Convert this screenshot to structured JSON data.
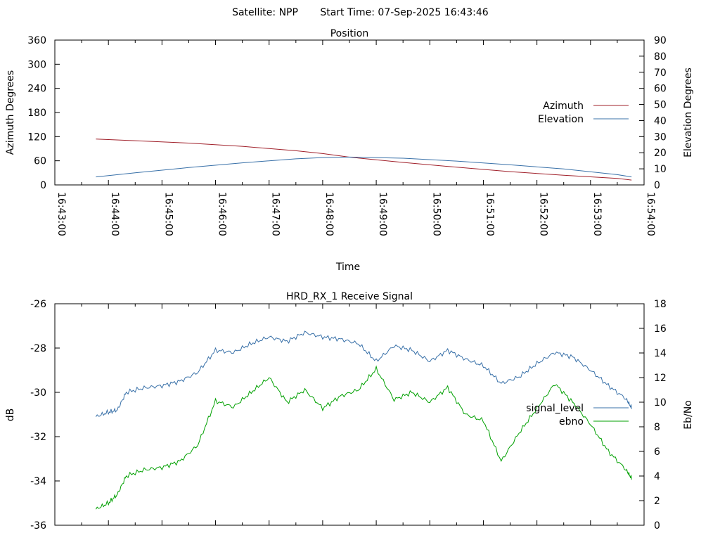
{
  "header": {
    "satellite": "Satellite: NPP",
    "start_time": "Start Time: 07-Sep-2025 16:43:46"
  },
  "chart_data": [
    {
      "type": "line",
      "title": "Position",
      "xlabel": "Time",
      "ylabel": "Azimuth Degrees",
      "y2label": "Elevation Degrees",
      "x_ticks": [
        "16:43:00",
        "16:44:00",
        "16:45:00",
        "16:46:00",
        "16:47:00",
        "16:48:00",
        "16:49:00",
        "16:50:00",
        "16:51:00",
        "16:52:00",
        "16:53:00",
        "16:54:00"
      ],
      "xlim": [
        "16:43:00",
        "16:54:00"
      ],
      "ylim": [
        0,
        360
      ],
      "y2lim": [
        0,
        90
      ],
      "y_ticks": [
        "0",
        "60",
        "120",
        "180",
        "240",
        "300",
        "360"
      ],
      "y2_ticks": [
        "0",
        "10",
        "20",
        "30",
        "40",
        "50",
        "60",
        "70",
        "80",
        "90"
      ],
      "legend_position": "right",
      "series": [
        {
          "name": "Azimuth",
          "axis": "y",
          "color": "#a0202a",
          "x": [
            "16:43:46",
            "16:44:30",
            "16:45:30",
            "16:46:30",
            "16:47:30",
            "16:48:00",
            "16:48:30",
            "16:49:30",
            "16:50:30",
            "16:51:30",
            "16:52:30",
            "16:53:30",
            "16:53:46"
          ],
          "values": [
            114,
            110,
            104,
            96,
            85,
            78,
            69,
            56,
            44,
            33,
            24,
            16,
            12
          ]
        },
        {
          "name": "Elevation",
          "axis": "y2",
          "color": "#3870a8",
          "x": [
            "16:43:46",
            "16:44:30",
            "16:45:30",
            "16:46:30",
            "16:47:30",
            "16:48:00",
            "16:48:30",
            "16:49:30",
            "16:50:30",
            "16:51:30",
            "16:52:30",
            "16:53:30",
            "16:53:46"
          ],
          "values": [
            5,
            7.5,
            10.8,
            13.7,
            16.2,
            17.0,
            17.3,
            16.6,
            14.8,
            12.5,
            9.9,
            6.4,
            5
          ]
        }
      ]
    },
    {
      "type": "line",
      "title": "HRD_RX_1 Receive Signal",
      "xlabel": "",
      "ylabel": "dB",
      "y2label": "Eb/No",
      "xlim": [
        "16:43:00",
        "16:54:00"
      ],
      "ylim": [
        -36,
        -26
      ],
      "y2lim": [
        0,
        18
      ],
      "y_ticks": [
        "-36",
        "-34",
        "-32",
        "-30",
        "-28",
        "-26"
      ],
      "y2_ticks": [
        "0",
        "2",
        "4",
        "6",
        "8",
        "10",
        "12",
        "14",
        "16",
        "18"
      ],
      "legend_position": "right",
      "series": [
        {
          "name": "signal_level",
          "axis": "y",
          "color": "#3870a8",
          "x": [
            "16:43:46",
            "16:44:00",
            "16:44:10",
            "16:44:20",
            "16:44:40",
            "16:45:00",
            "16:45:20",
            "16:45:40",
            "16:46:00",
            "16:46:20",
            "16:46:40",
            "16:47:00",
            "16:47:20",
            "16:47:40",
            "16:48:00",
            "16:48:20",
            "16:48:40",
            "16:49:00",
            "16:49:20",
            "16:49:40",
            "16:50:00",
            "16:50:20",
            "16:50:40",
            "16:51:00",
            "16:51:20",
            "16:51:40",
            "16:52:00",
            "16:52:20",
            "16:52:40",
            "16:53:00",
            "16:53:20",
            "16:53:40",
            "16:53:46"
          ],
          "values": [
            -31.1,
            -30.9,
            -30.8,
            -30.0,
            -29.8,
            -29.7,
            -29.5,
            -29.1,
            -28.1,
            -28.2,
            -27.8,
            -27.5,
            -27.7,
            -27.3,
            -27.5,
            -27.6,
            -27.8,
            -28.6,
            -27.9,
            -28.1,
            -28.6,
            -28.1,
            -28.5,
            -28.8,
            -29.6,
            -29.3,
            -28.7,
            -28.2,
            -28.4,
            -29.0,
            -29.7,
            -30.3,
            -30.7
          ]
        },
        {
          "name": "ebno",
          "axis": "y2",
          "color": "#00a000",
          "x": [
            "16:43:46",
            "16:44:00",
            "16:44:10",
            "16:44:20",
            "16:44:40",
            "16:45:00",
            "16:45:20",
            "16:45:40",
            "16:46:00",
            "16:46:20",
            "16:46:40",
            "16:47:00",
            "16:47:20",
            "16:47:40",
            "16:48:00",
            "16:48:20",
            "16:48:40",
            "16:49:00",
            "16:49:20",
            "16:49:40",
            "16:50:00",
            "16:50:20",
            "16:50:40",
            "16:51:00",
            "16:51:20",
            "16:51:40",
            "16:52:00",
            "16:52:20",
            "16:52:40",
            "16:53:00",
            "16:53:20",
            "16:53:40",
            "16:53:46"
          ],
          "values": [
            1.3,
            1.8,
            2.5,
            4.0,
            4.5,
            4.7,
            5.2,
            6.5,
            10.1,
            9.6,
            10.8,
            12.0,
            10.0,
            11.0,
            9.5,
            10.5,
            11.0,
            12.7,
            10.2,
            10.8,
            10.0,
            11.2,
            9.0,
            8.5,
            5.2,
            7.5,
            9.5,
            11.5,
            10.0,
            8.2,
            6.0,
            4.5,
            3.8
          ]
        }
      ]
    }
  ]
}
